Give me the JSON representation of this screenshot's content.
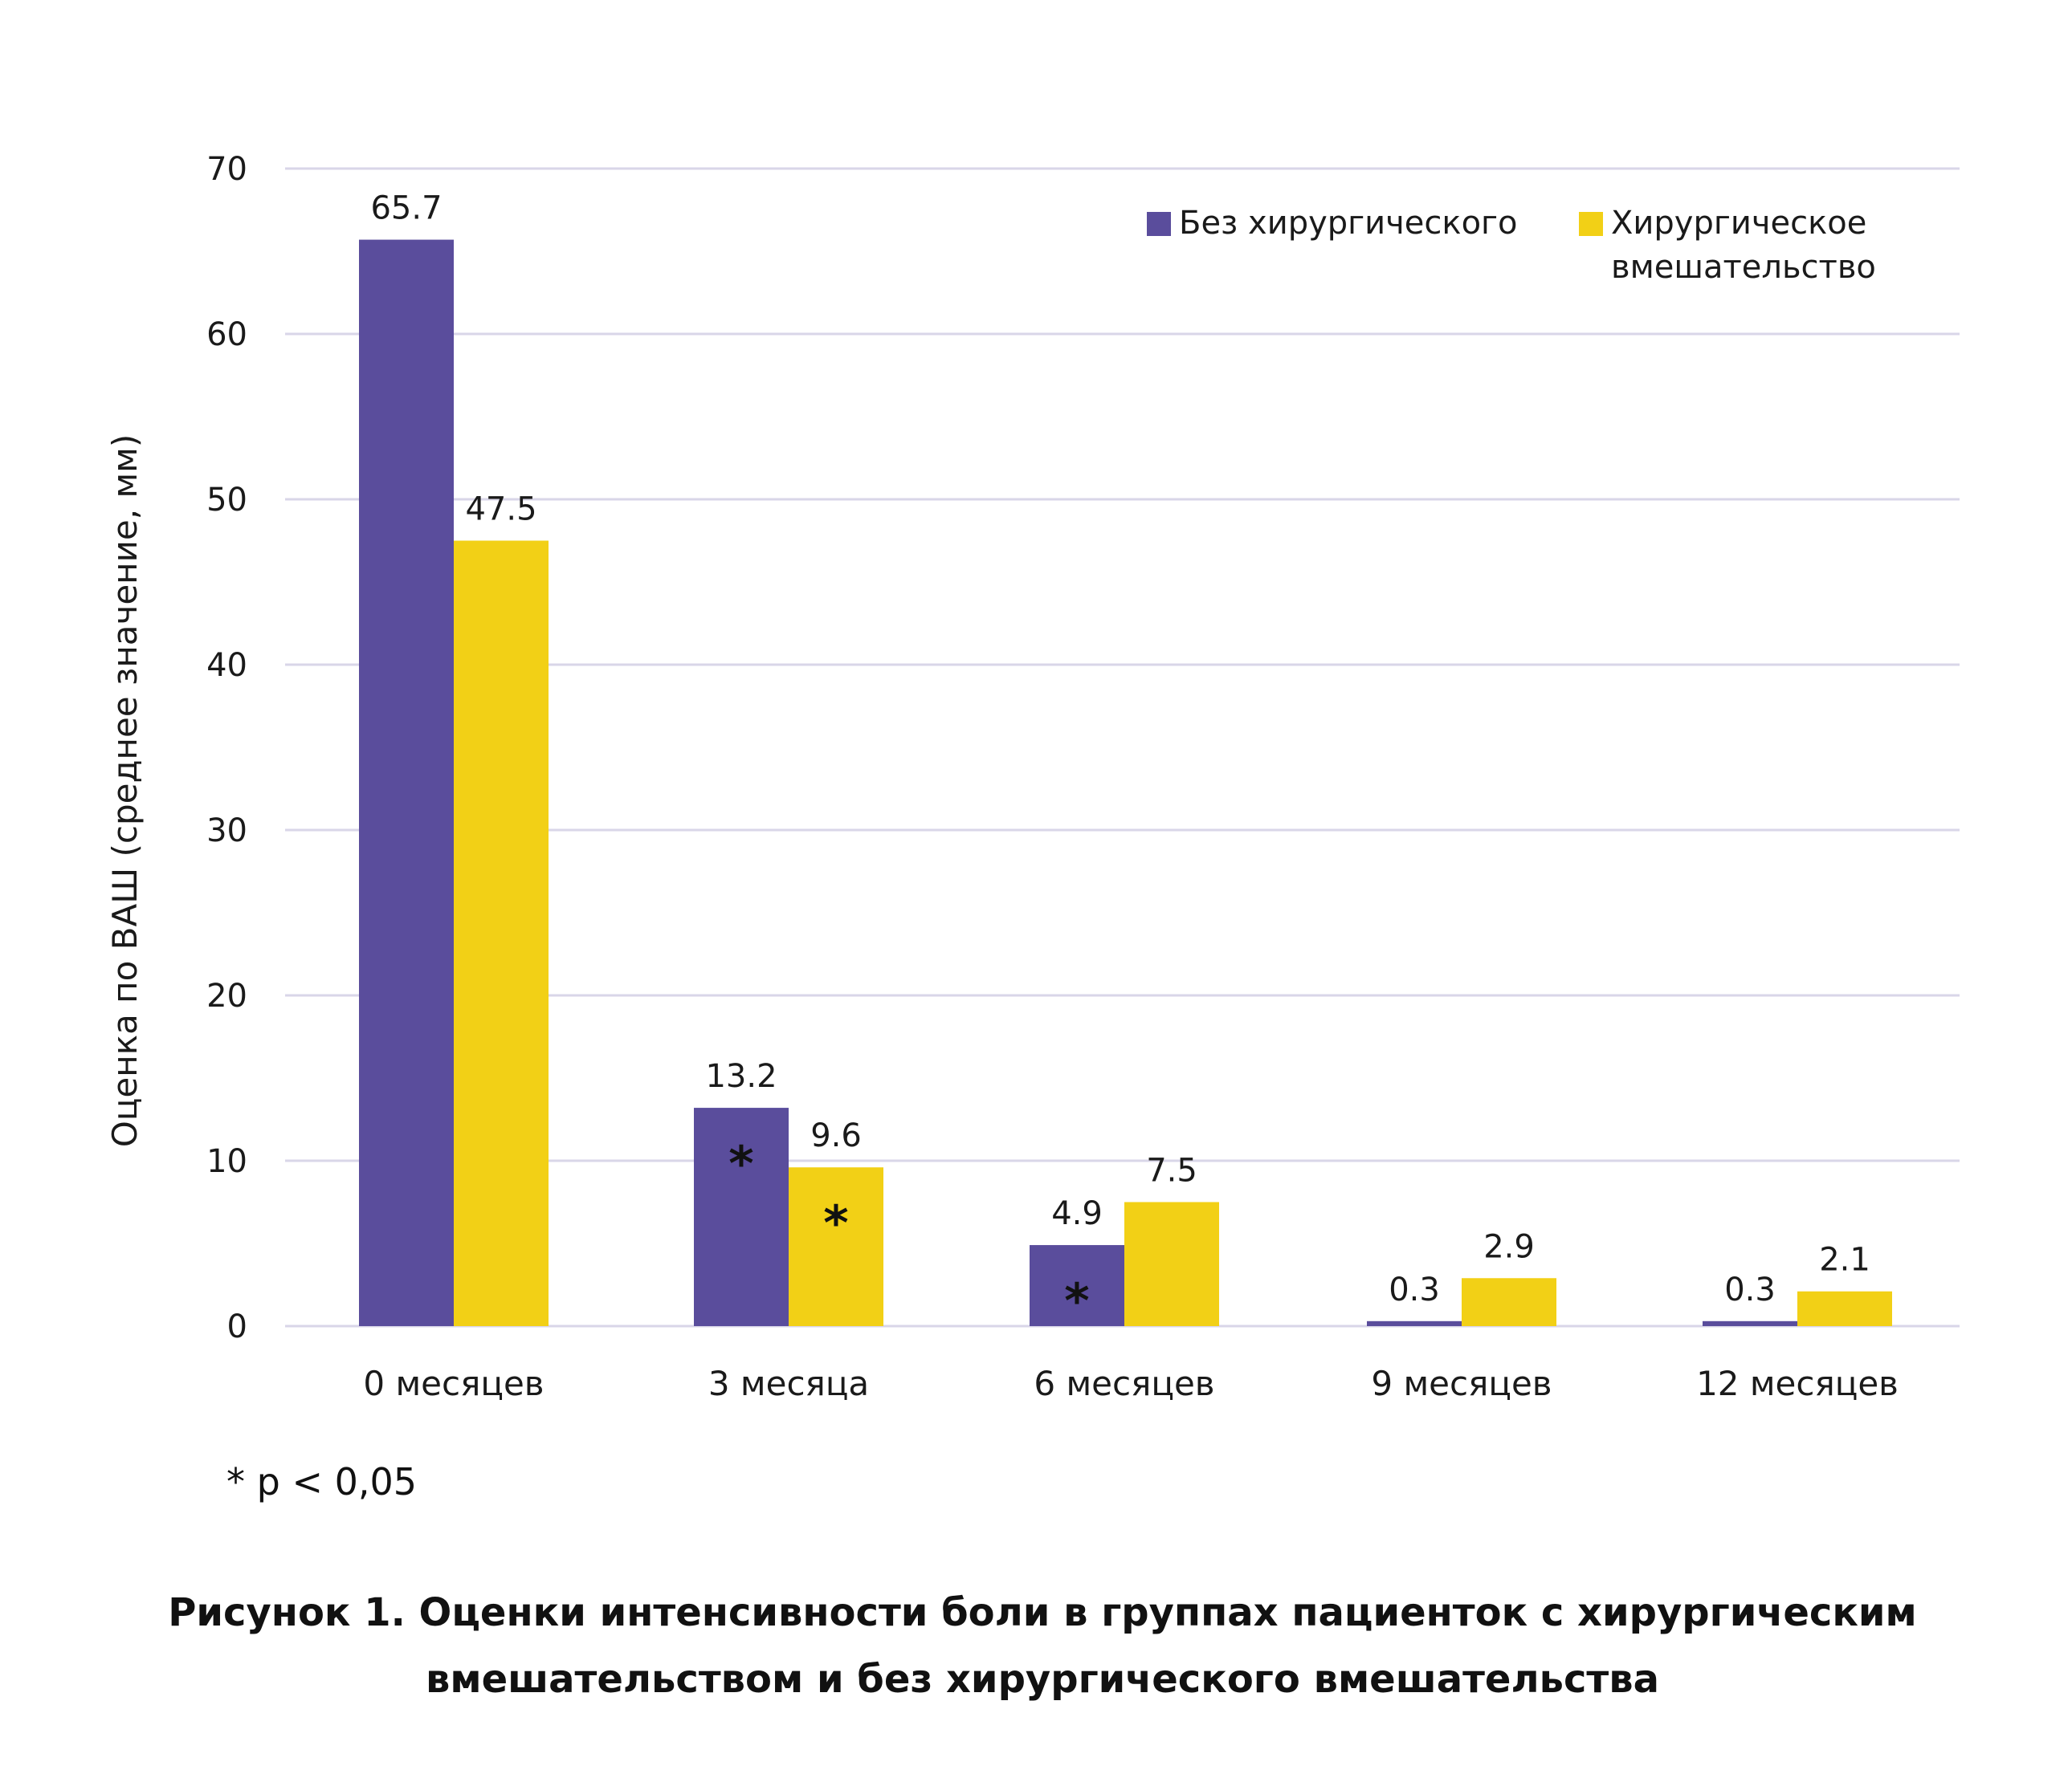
{
  "chart_data": {
    "type": "bar",
    "ylabel": "Оценка по ВАШ (среднее значение, мм)",
    "xlabel": "",
    "ylim": [
      0,
      70
    ],
    "yticks": [
      0,
      10,
      20,
      30,
      40,
      50,
      60,
      70
    ],
    "grid": true,
    "legend_position": "top-right",
    "categories": [
      "0 месяцев",
      "3 месяца",
      "6 месяцев",
      "9 месяцев",
      "12 месяцев"
    ],
    "series": [
      {
        "name": "Без хирургического",
        "color": "#5a4d9c",
        "values": [
          65.7,
          13.2,
          4.9,
          0.3,
          0.3
        ],
        "labels": [
          "65.7",
          "13.2",
          "4.9",
          "0.3",
          "0.3"
        ],
        "significant": [
          false,
          true,
          true,
          false,
          false
        ]
      },
      {
        "name_lines": [
          "Хирургическое",
          "вмешательство"
        ],
        "name": "Хирургическое вмешательство",
        "color": "#f2d016",
        "values": [
          47.5,
          9.6,
          7.5,
          2.9,
          2.1
        ],
        "labels": [
          "47.5",
          "9.6",
          "7.5",
          "2.9",
          "2.1"
        ],
        "significant": [
          false,
          true,
          false,
          false,
          false
        ]
      }
    ],
    "significance_marker": "*",
    "footnote": "* p < 0,05"
  },
  "caption": {
    "line1": "Рисунок 1. Оценки интенсивности боли в группах пациенток с хирургическим",
    "line2": "вмешательством и без хирургического вмешательства"
  },
  "colors": {
    "grid": "#d9d6e8",
    "text": "#1a1a1a"
  }
}
